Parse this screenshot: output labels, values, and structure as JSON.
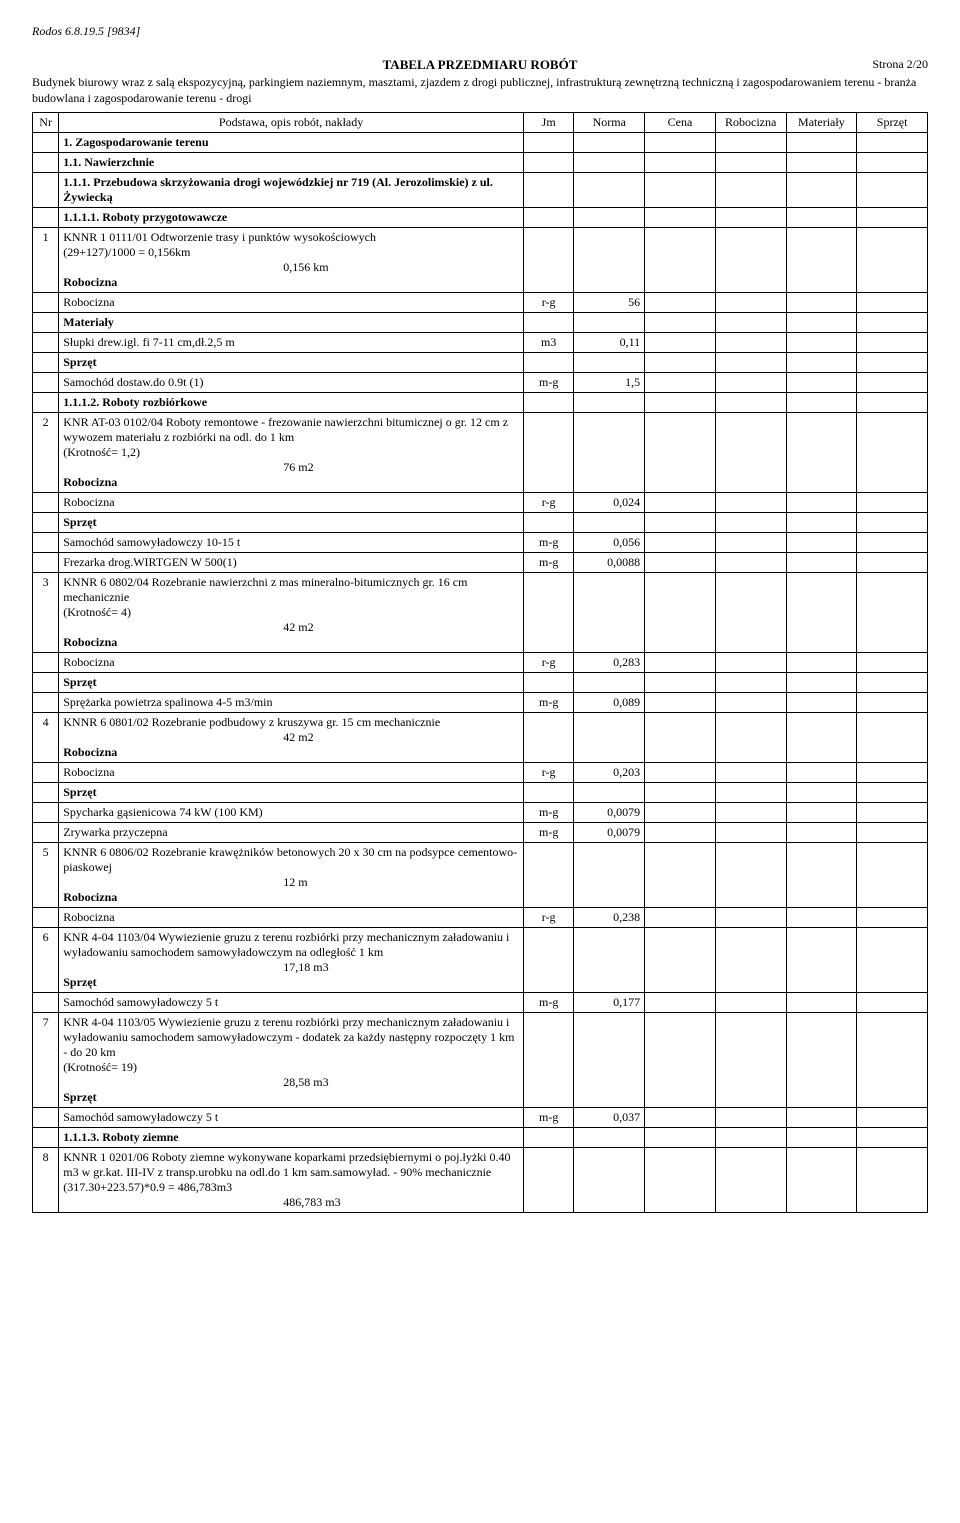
{
  "header_line": "Rodos 6.8.19.5 [9834]",
  "title": "TABELA PRZEDMIARU ROBÓT",
  "page_label": "Strona 2/20",
  "intro": "Budynek biurowy wraz z salą ekspozycyjną, parkingiem naziemnym, masztami, zjazdem z drogi publicznej, infrastrukturą zewnętrzną techniczną i zagospodarowaniem terenu - branża budowlana i zagospodarowanie terenu - drogi",
  "columns": [
    "Nr",
    "Podstawa, opis robót, nakłady",
    "Jm",
    "Norma",
    "Cena",
    "Robocizna",
    "Materiały",
    "Sprzęt"
  ],
  "sections": {
    "s1": "1.  Zagospodarowanie terenu",
    "s11": "1.1.  Nawierzchnie",
    "s111": "1.1.1.  Przebudowa skrzyżowania drogi wojewódzkiej nr 719 (Al. Jerozolimskie) z ul. Żywiecką",
    "s1111": "1.1.1.1.  Roboty przygotowawcze",
    "s1112": "1.1.1.2.  Roboty rozbiórkowe",
    "s1113": "1.1.1.3.  Roboty ziemne"
  },
  "labels": {
    "robocizna": "Robocizna",
    "materialy": "Materiały",
    "sprzet": "Sprzęt"
  },
  "rows": {
    "r1": {
      "nr": "1",
      "title": "KNNR 1 0111/01  Odtworzenie trasy i punktów wysokościowych",
      "l2": "(29+127)/1000 = 0,156km",
      "l3": "0,156  km",
      "robo_jm": "r-g",
      "robo_val": "56",
      "mat1": "Słupki drew.igl. fi 7-11 cm,dł.2,5 m",
      "mat1_jm": "m3",
      "mat1_val": "0,11",
      "spr1": "Samochód dostaw.do 0.9t (1)",
      "spr1_jm": "m-g",
      "spr1_val": "1,5"
    },
    "r2": {
      "nr": "2",
      "title": "KNR AT-03 0102/04  Roboty remontowe - frezowanie nawierzchni bitumicznej o gr. 12 cm z wywozem materiału z rozbiórki na odl. do 1 km",
      "l2": " (Krotność= 1,2)",
      "l3": "76  m2",
      "robo_jm": "r-g",
      "robo_val": "0,024",
      "spr1": "Samochód samowyładowczy 10-15 t",
      "spr1_jm": "m-g",
      "spr1_val": "0,056",
      "spr2": "Frezarka drog.WIRTGEN W 500(1)",
      "spr2_jm": "m-g",
      "spr2_val": "0,0088"
    },
    "r3": {
      "nr": "3",
      "title": "KNNR 6 0802/04  Rozebranie nawierzchni z mas mineralno-bitumicznych gr. 16 cm mechanicznie",
      "l2": " (Krotność= 4)",
      "l3": "42  m2",
      "robo_jm": "r-g",
      "robo_val": "0,283",
      "spr1": "Sprężarka powietrza spalinowa 4-5 m3/min",
      "spr1_jm": "m-g",
      "spr1_val": "0,089"
    },
    "r4": {
      "nr": "4",
      "title": "KNNR 6 0801/02  Rozebranie podbudowy z kruszywa gr. 15 cm mechanicznie",
      "l3": "42  m2",
      "robo_jm": "r-g",
      "robo_val": "0,203",
      "spr1": "Spycharka gąsienicowa 74 kW (100 KM)",
      "spr1_jm": "m-g",
      "spr1_val": "0,0079",
      "spr2": "Zrywarka przyczepna",
      "spr2_jm": "m-g",
      "spr2_val": "0,0079"
    },
    "r5": {
      "nr": "5",
      "title": "KNNR 6 0806/02  Rozebranie krawężników betonowych 20 x 30 cm na podsypce cementowo-piaskowej",
      "l3": "12  m",
      "robo_jm": "r-g",
      "robo_val": "0,238"
    },
    "r6": {
      "nr": "6",
      "title": "KNR 4-04 1103/04  Wywiezienie gruzu z terenu rozbiórki przy mechanicznym załadowaniu i wyładowaniu samochodem samowyładowczym na odległość 1 km",
      "l3": "17,18  m3",
      "spr1": "Samochód samowyładowczy 5 t",
      "spr1_jm": "m-g",
      "spr1_val": "0,177"
    },
    "r7": {
      "nr": "7",
      "title": "KNR 4-04 1103/05  Wywiezienie gruzu z terenu rozbiórki przy mechanicznym załadowaniu i wyładowaniu samochodem samowyładowczym - dodatek za każdy następny rozpoczęty 1 km - do 20 km",
      "l2": " (Krotność= 19)",
      "l3": "28,58  m3",
      "spr1": "Samochód samowyładowczy 5 t",
      "spr1_jm": "m-g",
      "spr1_val": "0,037"
    },
    "r8": {
      "nr": "8",
      "title": "KNNR 1 0201/06  Roboty ziemne wykonywane koparkami przedsiębiernymi o poj.łyżki 0.40 m3 w gr.kat. III-IV z transp.urobku na odl.do 1 km sam.samowyład. - 90% mechanicznie",
      "l2": "(317.30+223.57)*0.9 = 486,783m3",
      "l3": "486,783  m3"
    }
  }
}
